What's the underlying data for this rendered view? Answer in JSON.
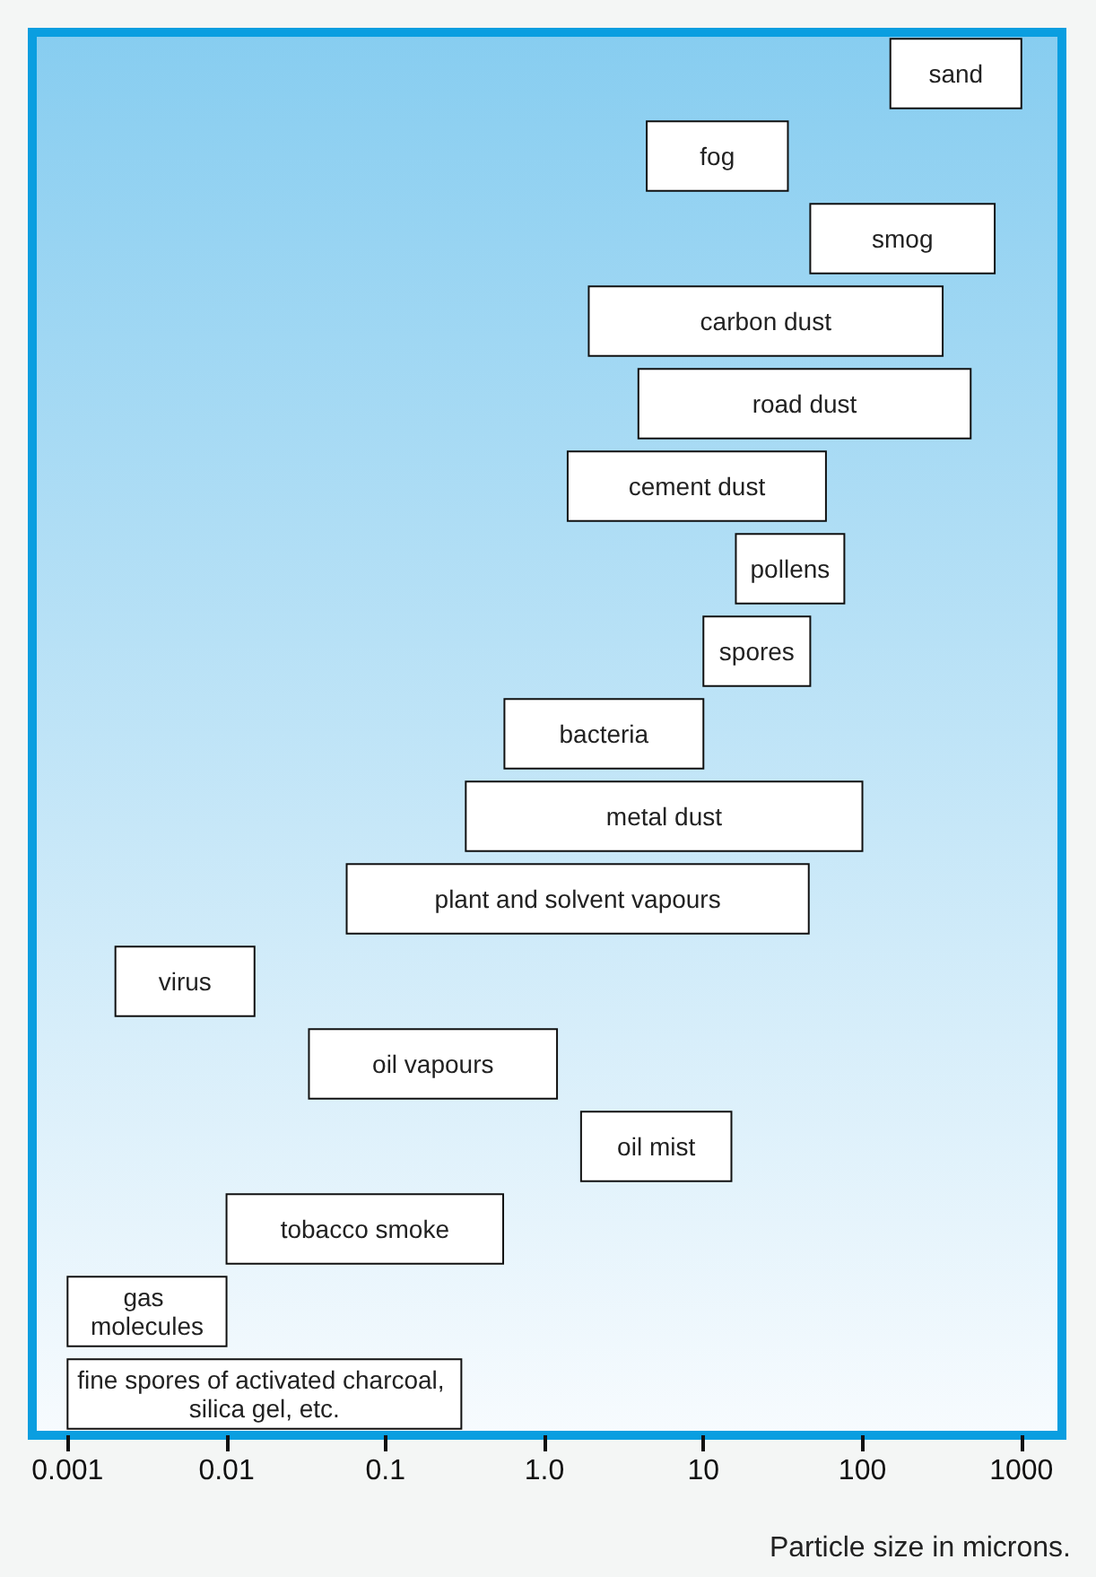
{
  "chart_data": {
    "type": "bar",
    "orientation": "horizontal",
    "log": "x",
    "xlabel": "Particle size in microns.",
    "categories": [
      "sand",
      "fog",
      "smog",
      "carbon dust",
      "road dust",
      "cement dust",
      "pollens",
      "spores",
      "bacteria",
      "metal dust",
      "plant and solvent vapours",
      "virus",
      "oil vapours",
      "oil mist",
      "tobacco smoke",
      "gas molecules",
      "fine spores of activated charcoal, silica gel, etc."
    ],
    "base": [
      150,
      4.4,
      47,
      1.9,
      3.9,
      1.4,
      16,
      10,
      0.56,
      0.32,
      0.057,
      0.002,
      0.033,
      1.7,
      0.01,
      0.001,
      0.001
    ],
    "values": [
      850,
      29.6,
      633,
      318.1,
      476.1,
      57.6,
      61,
      37,
      9.44,
      99.68,
      45.943,
      0.013,
      1.167,
      13.3,
      0.54,
      0.009,
      0.299
    ],
    "color": "#ffffff",
    "xlim": [
      0.0006,
      1800
    ],
    "xticks": [
      0.001,
      0.01,
      0.1,
      {
        "value": 1,
        "label": "1.0"
      },
      10,
      100,
      1000
    ],
    "tick_labels": "x"
  }
}
